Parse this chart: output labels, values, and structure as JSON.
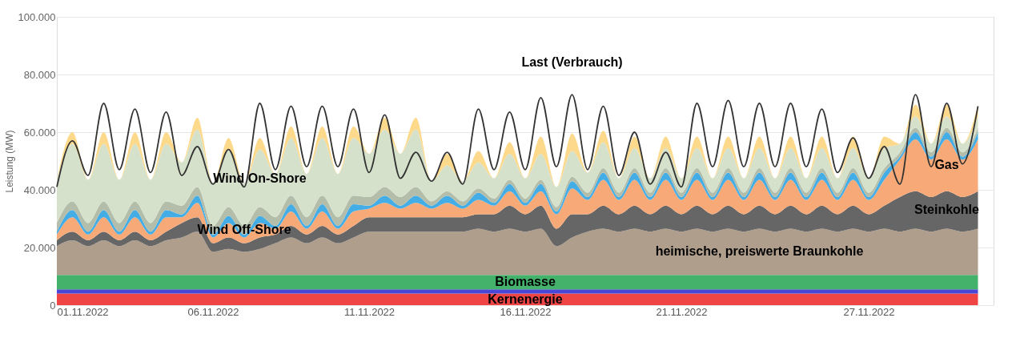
{
  "chart_data": {
    "type": "area",
    "stacked": true,
    "ylabel": "Leistung (MW)",
    "grid": "y",
    "xlim": [
      "2022-11-01T00:00",
      "2022-12-01T00:00"
    ],
    "xticks": [
      {
        "value": "2022-11-01",
        "label": "01.11.2022"
      },
      {
        "value": "2022-11-06",
        "label": "06.11.2022"
      },
      {
        "value": "2022-11-11",
        "label": "11.11.2022"
      },
      {
        "value": "2022-11-16",
        "label": "16.11.2022"
      },
      {
        "value": "2022-11-21",
        "label": "21.11.2022"
      },
      {
        "value": "2022-11-27",
        "label": "27.11.2022"
      }
    ],
    "ylim": [
      0,
      100000
    ],
    "yticks": [
      0,
      {
        "value": 20000,
        "label": "20.000"
      },
      {
        "value": 40000,
        "label": "40.000"
      },
      {
        "value": 60000,
        "label": "60.000"
      },
      {
        "value": 80000,
        "label": "80.000"
      },
      {
        "value": 100000,
        "label": "100.000"
      }
    ],
    "x": [
      "2022-11-01T00:00",
      "2022-11-01T12:00",
      "2022-11-02T00:00",
      "2022-11-02T12:00",
      "2022-11-03T00:00",
      "2022-11-03T12:00",
      "2022-11-04T00:00",
      "2022-11-04T12:00",
      "2022-11-05T00:00",
      "2022-11-05T12:00",
      "2022-11-06T00:00",
      "2022-11-06T12:00",
      "2022-11-07T00:00",
      "2022-11-07T12:00",
      "2022-11-08T00:00",
      "2022-11-08T12:00",
      "2022-11-09T00:00",
      "2022-11-09T12:00",
      "2022-11-10T00:00",
      "2022-11-10T12:00",
      "2022-11-11T00:00",
      "2022-11-11T12:00",
      "2022-11-12T00:00",
      "2022-11-12T12:00",
      "2022-11-13T00:00",
      "2022-11-13T12:00",
      "2022-11-14T00:00",
      "2022-11-14T12:00",
      "2022-11-15T00:00",
      "2022-11-15T12:00",
      "2022-11-16T00:00",
      "2022-11-16T12:00",
      "2022-11-17T00:00",
      "2022-11-17T12:00",
      "2022-11-18T00:00",
      "2022-11-18T12:00",
      "2022-11-19T00:00",
      "2022-11-19T12:00",
      "2022-11-20T00:00",
      "2022-11-20T12:00",
      "2022-11-21T00:00",
      "2022-11-21T12:00",
      "2022-11-22T00:00",
      "2022-11-22T12:00",
      "2022-11-23T00:00",
      "2022-11-23T12:00",
      "2022-11-24T00:00",
      "2022-11-24T12:00",
      "2022-11-25T00:00",
      "2022-11-25T12:00",
      "2022-11-26T00:00",
      "2022-11-26T12:00",
      "2022-11-27T00:00",
      "2022-11-27T12:00",
      "2022-11-28T00:00",
      "2022-11-28T12:00",
      "2022-11-29T00:00",
      "2022-11-29T12:00",
      "2022-11-30T00:00",
      "2022-11-30T12:00"
    ],
    "series": [
      {
        "name": "Kernenergie",
        "color": "#f04545",
        "values": [
          4000,
          4000,
          4000,
          4000,
          4000,
          4000,
          4000,
          4000,
          4000,
          4000,
          4000,
          4000,
          4000,
          4000,
          4000,
          4000,
          4000,
          4000,
          4000,
          4000,
          4000,
          4000,
          4000,
          4000,
          4000,
          4000,
          4000,
          4000,
          4000,
          4000,
          4000,
          4000,
          4000,
          4000,
          4000,
          4000,
          4000,
          4000,
          4000,
          4000,
          4000,
          4000,
          4000,
          4000,
          4000,
          4000,
          4000,
          4000,
          4000,
          4000,
          4000,
          4000,
          4000,
          4000,
          4000,
          4000,
          4000,
          4000,
          4000,
          4000
        ]
      },
      {
        "color": "#4a46d8",
        "values": [
          1500,
          1500,
          1500,
          1500,
          1500,
          1500,
          1500,
          1500,
          1500,
          1500,
          1500,
          1500,
          1500,
          1500,
          1500,
          1500,
          1500,
          1500,
          1500,
          1500,
          1500,
          1500,
          1500,
          1500,
          1500,
          1500,
          1500,
          1500,
          1500,
          1500,
          1500,
          1500,
          1500,
          1500,
          1500,
          1500,
          1500,
          1500,
          1500,
          1500,
          1500,
          1500,
          1500,
          1500,
          1500,
          1500,
          1500,
          1500,
          1500,
          1500,
          1500,
          1500,
          1500,
          1500,
          1500,
          1500,
          1500,
          1500,
          1500,
          1500
        ]
      },
      {
        "name": "Biomasse",
        "color": "#45b26b",
        "values": [
          5000,
          5000,
          5000,
          5000,
          5000,
          5000,
          5000,
          5000,
          5000,
          5000,
          5000,
          5000,
          5000,
          5000,
          5000,
          5000,
          5000,
          5000,
          5000,
          5000,
          5000,
          5000,
          5000,
          5000,
          5000,
          5000,
          5000,
          5000,
          5000,
          5000,
          5000,
          5000,
          5000,
          5000,
          5000,
          5000,
          5000,
          5000,
          5000,
          5000,
          5000,
          5000,
          5000,
          5000,
          5000,
          5000,
          5000,
          5000,
          5000,
          5000,
          5000,
          5000,
          5000,
          5000,
          5000,
          5000,
          5000,
          5000,
          5000,
          5000
        ]
      },
      {
        "name": "heimische, preiswerte Braunkohle",
        "color": "#b09e8d",
        "values": [
          10000,
          12000,
          10000,
          12000,
          10000,
          12000,
          10000,
          12000,
          13000,
          15000,
          8000,
          9000,
          8000,
          9000,
          11000,
          13000,
          11000,
          13000,
          11000,
          13000,
          15000,
          15000,
          15000,
          15000,
          15000,
          15000,
          15000,
          16000,
          15000,
          16000,
          15000,
          16000,
          10000,
          13000,
          15000,
          16000,
          15000,
          16000,
          15000,
          16000,
          15000,
          16000,
          15000,
          16000,
          15000,
          16000,
          15000,
          16000,
          15000,
          16000,
          15000,
          16000,
          15000,
          16000,
          15000,
          16000,
          15000,
          16000,
          15000,
          16000
        ]
      },
      {
        "name": "Steinkohle",
        "color": "#666666",
        "values": [
          2000,
          3000,
          2000,
          3000,
          2000,
          3000,
          2000,
          3000,
          5000,
          5000,
          3000,
          4000,
          3000,
          4000,
          3000,
          4000,
          3000,
          4000,
          3000,
          4000,
          5000,
          5000,
          5000,
          5000,
          5000,
          5000,
          5000,
          5000,
          6000,
          8000,
          6000,
          8000,
          6000,
          8000,
          6000,
          8000,
          6000,
          8000,
          6000,
          8000,
          6000,
          8000,
          6000,
          8000,
          6000,
          8000,
          6000,
          8000,
          6000,
          8000,
          6000,
          8000,
          6000,
          8000,
          12000,
          13000,
          12000,
          13000,
          12000,
          13000
        ]
      },
      {
        "name": "Gas",
        "color": "#f7aa78",
        "values": [
          2000,
          5000,
          2000,
          5000,
          2000,
          5000,
          2000,
          5000,
          2000,
          5000,
          2000,
          5000,
          2000,
          5000,
          2000,
          5000,
          2000,
          5000,
          2000,
          5000,
          3000,
          5000,
          3000,
          5000,
          3000,
          5000,
          3000,
          5000,
          3000,
          5000,
          3000,
          5000,
          5000,
          9000,
          5000,
          9000,
          5000,
          9000,
          5000,
          9000,
          5000,
          9000,
          5000,
          9000,
          5000,
          9000,
          5000,
          9000,
          5000,
          9000,
          5000,
          9000,
          5000,
          9000,
          13000,
          18000,
          13000,
          18000,
          13000,
          18000
        ]
      },
      {
        "color": "#45ade5",
        "values": [
          1000,
          2500,
          1000,
          2500,
          1000,
          2500,
          1000,
          2500,
          1000,
          2500,
          1000,
          2500,
          1000,
          2500,
          1000,
          2500,
          1000,
          2500,
          1000,
          2500,
          1000,
          2500,
          1000,
          2500,
          1000,
          2500,
          1000,
          2500,
          1000,
          2500,
          1000,
          2500,
          1000,
          2500,
          1000,
          2500,
          1000,
          2500,
          1000,
          2500,
          1000,
          2500,
          1000,
          2500,
          1000,
          2500,
          1000,
          2500,
          1000,
          2500,
          1000,
          2500,
          1000,
          2500,
          1000,
          2500,
          1000,
          2500,
          1000,
          2500
        ]
      },
      {
        "name": "Wind Off-Shore",
        "color": "#b3bda9",
        "values": [
          3000,
          3000,
          3000,
          3000,
          3000,
          3000,
          3000,
          3000,
          3000,
          3000,
          3000,
          3000,
          3000,
          3000,
          3000,
          3000,
          3000,
          3000,
          3000,
          3000,
          3000,
          3000,
          3000,
          3000,
          1500,
          1500,
          1500,
          1500,
          1500,
          1500,
          1500,
          1500,
          1500,
          1500,
          1500,
          1500,
          1500,
          1500,
          1500,
          1500,
          1500,
          1500,
          1500,
          1500,
          1500,
          1500,
          1500,
          1500,
          1500,
          1500,
          1500,
          1500,
          1500,
          1500,
          1500,
          1500,
          1500,
          1500,
          1500,
          1500
        ]
      },
      {
        "name": "Wind On-Shore",
        "color": "#d5e1cb",
        "values": [
          15000,
          20000,
          15000,
          20000,
          15000,
          20000,
          15000,
          20000,
          15000,
          20000,
          15000,
          20000,
          15000,
          20000,
          15000,
          20000,
          15000,
          20000,
          15000,
          20000,
          15000,
          20000,
          15000,
          20000,
          7000,
          9000,
          7000,
          9000,
          7000,
          9000,
          7000,
          9000,
          7000,
          9000,
          7000,
          9000,
          5000,
          7000,
          5000,
          7000,
          5000,
          7000,
          5000,
          7000,
          5000,
          7000,
          5000,
          7000,
          5000,
          7000,
          5000,
          7000,
          5000,
          7000,
          3000,
          4000,
          3000,
          4000,
          3000,
          4000
        ]
      },
      {
        "color": "#fdd98c",
        "values": [
          0,
          4000,
          0,
          4000,
          0,
          4000,
          0,
          4000,
          0,
          4000,
          0,
          4000,
          0,
          4000,
          0,
          4000,
          0,
          4000,
          0,
          4000,
          0,
          4000,
          0,
          4000,
          0,
          4000,
          0,
          4000,
          0,
          4000,
          0,
          6000,
          0,
          6000,
          0,
          4000,
          0,
          4000,
          0,
          4000,
          0,
          4000,
          0,
          4000,
          0,
          4000,
          0,
          4000,
          0,
          4000,
          0,
          4000,
          0,
          4000,
          0,
          4000,
          0,
          4000,
          0,
          4000
        ]
      },
      {
        "name": "Last (Verbrauch)",
        "type": "line",
        "color": "#333333",
        "values": [
          41000,
          57000,
          45000,
          70000,
          47000,
          68000,
          46000,
          67000,
          45000,
          55000,
          42000,
          54000,
          41000,
          70000,
          47000,
          69000,
          48000,
          69000,
          48000,
          68000,
          46000,
          66000,
          44000,
          53000,
          43000,
          53000,
          42000,
          68000,
          47000,
          67000,
          47000,
          72000,
          48000,
          73000,
          47000,
          69000,
          45000,
          60000,
          42000,
          53000,
          41000,
          70000,
          48000,
          71000,
          48000,
          70000,
          48000,
          70000,
          48000,
          68000,
          46000,
          58000,
          44000,
          55000,
          42000,
          73000,
          48000,
          70000,
          49000,
          69000
        ]
      }
    ]
  }
}
